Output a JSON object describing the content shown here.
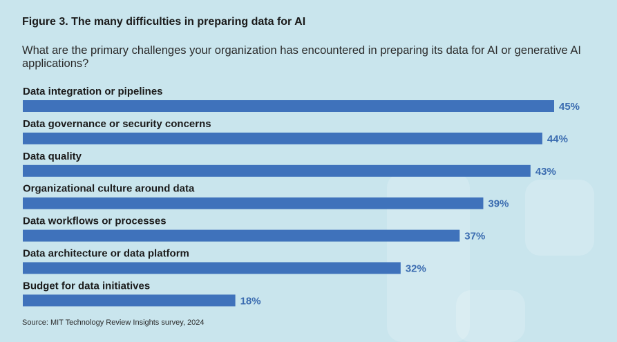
{
  "title": "Figure 3. The many difficulties in preparing data for AI",
  "subtitle": "What are the primary challenges your organization has encountered in preparing its data for AI or generative AI applications?",
  "source": "Source: MIT Technology Review Insights survey, 2024",
  "colors": {
    "bar": "#3f72bb",
    "value_label": "#3b6cb0",
    "background": "#c9e5ed"
  },
  "chart_data": {
    "type": "bar",
    "orientation": "horizontal",
    "title": "Figure 3. The many difficulties in preparing data for AI",
    "categories": [
      "Data integration or pipelines",
      "Data governance or security concerns",
      "Data quality",
      "Organizational culture around data",
      "Data workflows or processes",
      "Data architecture or data platform",
      "Budget for data initiatives"
    ],
    "values": [
      45,
      44,
      43,
      39,
      37,
      32,
      18
    ],
    "value_suffix": "%",
    "xlim": [
      0,
      45
    ],
    "grid": false,
    "legend": "none"
  }
}
